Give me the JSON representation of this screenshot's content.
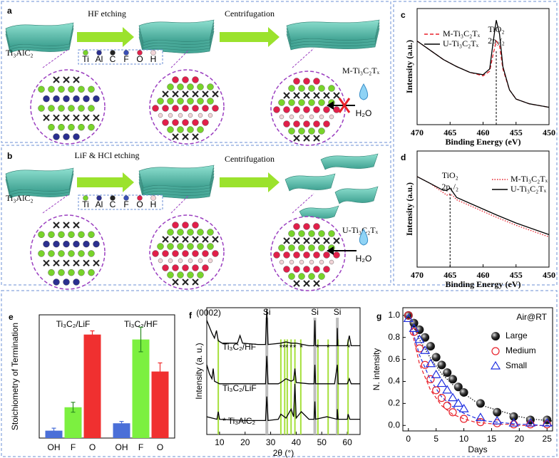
{
  "panels": {
    "a": {
      "label": "a",
      "steps": [
        "HF etching",
        "Centrifugation"
      ],
      "start": "Ti₃AlC₂",
      "product": "M-Ti₃C₂Tₓ",
      "water": "H₂O",
      "elements": [
        "Ti",
        "Al",
        "C",
        "F",
        "O",
        "H"
      ],
      "element_colors": [
        "#78d32a",
        "#2b2f8f",
        "#222222",
        "#3a4fb5",
        "#e0204a",
        "#f2d4d8"
      ]
    },
    "b": {
      "label": "b",
      "steps": [
        "LiF & HCl etching",
        "Centrifugation"
      ],
      "start": "Ti₃AlC₂",
      "product": "U-Ti₃C₂Tₓ",
      "water": "H₂O",
      "elements": [
        "Ti",
        "Al",
        "C",
        "F",
        "O",
        "H"
      ],
      "element_colors": [
        "#78d32a",
        "#2b2f8f",
        "#222222",
        "#3a4fb5",
        "#e0204a",
        "#f2d4d8"
      ]
    }
  },
  "chart_data": [
    {
      "type": "line",
      "label": "c",
      "xlabel": "Binding Energy (eV)",
      "ylabel": "Intensity (a.u.)",
      "xlim": [
        470,
        450
      ],
      "xticks": [
        470,
        465,
        460,
        455,
        450
      ],
      "ylim": [
        0,
        100
      ],
      "legend": "upper left",
      "annotation": [
        "TiO₂",
        "2p₃/₂"
      ],
      "peak_x": 458,
      "x": [
        470,
        468,
        466,
        464,
        462,
        460,
        459,
        458.5,
        458,
        457.5,
        457,
        456,
        455,
        453,
        450
      ],
      "series": [
        {
          "name": "M-Ti₃C₂Tₓ",
          "color": "#e8202a",
          "dash": "dashed",
          "values": [
            72,
            64,
            56,
            50,
            45,
            42,
            46,
            60,
            72,
            68,
            48,
            30,
            22,
            18,
            15
          ]
        },
        {
          "name": "U-Ti₃C₂Tₓ",
          "color": "#000000",
          "dash": "solid",
          "values": [
            72,
            64,
            56,
            50,
            45,
            43,
            48,
            70,
            90,
            78,
            50,
            30,
            22,
            18,
            15
          ]
        }
      ]
    },
    {
      "type": "line",
      "label": "d",
      "xlabel": "Binding Energy (eV)",
      "ylabel": "Intensity (a.u.)",
      "xlim": [
        470,
        450
      ],
      "xticks": [
        470,
        465,
        460,
        455,
        450
      ],
      "ylim": [
        0,
        100
      ],
      "legend": "upper right",
      "annotation": [
        "TiO₂",
        "2p₁/₂"
      ],
      "peak_x": 465,
      "x": [
        470,
        468,
        466,
        465.5,
        465,
        464.5,
        464,
        462,
        460,
        458,
        455,
        450
      ],
      "series": [
        {
          "name": "M-Ti₃C₂Tₓ",
          "color": "#e8202a",
          "dash": "dotted",
          "values": [
            78,
            72,
            64,
            62,
            63,
            61,
            58,
            53,
            48,
            43,
            36,
            26
          ]
        },
        {
          "name": "U-Ti₃C₂Tₓ",
          "color": "#000000",
          "dash": "solid",
          "values": [
            78,
            72,
            66,
            66,
            68,
            64,
            60,
            55,
            50,
            45,
            38,
            28
          ]
        }
      ]
    },
    {
      "type": "bar",
      "label": "e",
      "ylabel": "Stoichiometry of Termination",
      "ylim": [
        0,
        1.0
      ],
      "groups": [
        "Ti₃C₂/LiF",
        "Ti₃C₂/HF"
      ],
      "series": [
        {
          "name": "OH",
          "color": "#4a6fd8",
          "values": [
            0.06,
            0.12
          ],
          "errors": [
            0.02,
            0.015
          ]
        },
        {
          "name": "F",
          "color": "#7cf040",
          "values": [
            0.25,
            0.8
          ],
          "errors": [
            0.04,
            0.1
          ]
        },
        {
          "name": "O",
          "color": "#f03030",
          "values": [
            0.84,
            0.54
          ],
          "errors": [
            0.03,
            0.07
          ]
        }
      ]
    },
    {
      "type": "line",
      "label": "f",
      "xlabel": "2θ (°)",
      "ylabel": "Intensity (a. u.)",
      "xlim": [
        5,
        65
      ],
      "xticks": [
        10,
        20,
        30,
        40,
        50,
        60
      ],
      "ylim": [
        0,
        100
      ],
      "annotation": {
        "text": "(0002)",
        "x": 8.5
      },
      "reference_lines": {
        "label": "Si",
        "color": "#bdbdbd",
        "x": [
          28.5,
          47.3,
          56.1
        ]
      },
      "phase_lines": {
        "color": "#a6e03c",
        "x": [
          9.5,
          34,
          35.5,
          36.5,
          38,
          39.5,
          41.8,
          48.5,
          52.5,
          56.4,
          60.3
        ]
      },
      "stars": {
        "label": "*",
        "x": [
          34,
          35.2,
          36.3,
          38,
          39.4,
          42,
          48.4,
          52.5,
          60.6
        ]
      },
      "series": [
        {
          "name": "Ti₃C₂/HF",
          "color": "#000000",
          "x": [
            5,
            7,
            8,
            8.8,
            9.5,
            11,
            17,
            18,
            19,
            25,
            28,
            28.5,
            29,
            34,
            36,
            38,
            40,
            45,
            47,
            47.3,
            47.6,
            52,
            56,
            56.1,
            56.3,
            60,
            60.8,
            61.5,
            65
          ],
          "values": [
            90,
            80,
            76,
            82,
            74,
            72,
            72,
            78,
            72,
            71,
            71,
            99,
            71,
            72,
            73,
            72,
            72,
            70,
            70,
            90,
            70,
            70,
            70,
            84,
            70,
            70,
            78,
            70,
            70
          ]
        },
        {
          "name": "Ti₃C₂/LiF",
          "color": "#000000",
          "x": [
            5,
            6,
            7,
            7.5,
            8,
            10,
            20,
            28,
            28.5,
            29,
            33,
            34,
            36,
            38,
            39,
            39.5,
            40,
            45,
            47,
            47.3,
            47.6,
            55,
            56.1,
            56.4,
            60,
            60.8,
            61.5,
            65
          ],
          "values": [
            55,
            48,
            44,
            52,
            42,
            40,
            40,
            40,
            62,
            40,
            40,
            41,
            44,
            42,
            43,
            52,
            41,
            40,
            40,
            55,
            40,
            40,
            55,
            40,
            40,
            44,
            40,
            40
          ]
        },
        {
          "name": "* Ti₃AlC₂",
          "color": "#000000",
          "x": [
            5,
            9,
            9.5,
            10,
            20,
            28,
            28.5,
            29,
            33,
            34,
            36,
            38,
            39,
            39.5,
            40,
            42,
            45,
            47,
            47.3,
            47.6,
            52,
            56,
            56.1,
            56.4,
            60,
            60.3,
            61,
            65
          ],
          "values": [
            14,
            12,
            18,
            12,
            11,
            11,
            30,
            11,
            12,
            16,
            13,
            20,
            14,
            40,
            13,
            18,
            12,
            12,
            26,
            12,
            14,
            12,
            20,
            12,
            12,
            16,
            12,
            12
          ]
        }
      ]
    },
    {
      "type": "scatter",
      "label": "g",
      "xlabel": "Days",
      "ylabel": "N. intensity",
      "xlim": [
        -1,
        26
      ],
      "xticks": [
        0,
        5,
        10,
        15,
        20,
        25
      ],
      "ylim": [
        -0.05,
        1.07
      ],
      "yticks": [
        {
          "value": 0,
          "label": "0.0"
        },
        {
          "value": 0.2,
          "label": "0.2"
        },
        {
          "value": 0.4,
          "label": "0.4"
        },
        {
          "value": 0.6,
          "label": "0.6"
        },
        {
          "value": 0.8,
          "label": "0.8"
        },
        {
          "value": 1,
          "label": "1.0"
        }
      ],
      "legend": "upper right",
      "legend_title": "Air@RT",
      "series": [
        {
          "name": "Large",
          "color": "#000000",
          "marker": "sphere",
          "x": [
            0,
            1,
            2,
            3,
            4,
            5,
            6,
            7,
            8,
            9,
            10,
            13,
            16,
            19,
            22,
            25
          ],
          "values": [
            1.0,
            0.93,
            0.87,
            0.8,
            0.72,
            0.62,
            0.55,
            0.48,
            0.42,
            0.35,
            0.3,
            0.2,
            0.12,
            0.08,
            0.05,
            0.05
          ]
        },
        {
          "name": "Medium",
          "color": "#e8202a",
          "marker": "circle",
          "x": [
            0,
            1,
            2,
            3,
            4,
            5,
            6,
            7,
            8,
            10,
            13,
            16,
            19,
            22,
            25
          ],
          "values": [
            1.0,
            0.85,
            0.7,
            0.55,
            0.42,
            0.32,
            0.25,
            0.18,
            0.12,
            0.06,
            0.03,
            0.02,
            0.01,
            0.01,
            0.01
          ]
        },
        {
          "name": "Small",
          "color": "#1f2fe0",
          "marker": "triangle",
          "x": [
            0,
            1,
            2,
            3,
            4,
            5,
            6,
            7,
            8,
            9,
            10,
            13,
            16,
            19,
            22,
            25
          ],
          "values": [
            0.97,
            0.88,
            0.78,
            0.68,
            0.56,
            0.46,
            0.38,
            0.32,
            0.25,
            0.2,
            0.15,
            0.07,
            0.04,
            0.02,
            0.02,
            0.02
          ]
        }
      ],
      "fits": [
        {
          "color": "#000000",
          "dash": "dotted",
          "x": [
            0,
            2,
            4,
            6,
            8,
            10,
            12,
            14,
            16,
            18,
            20,
            22,
            24,
            26
          ],
          "values": [
            1,
            0.78,
            0.61,
            0.47,
            0.37,
            0.29,
            0.22,
            0.17,
            0.14,
            0.11,
            0.08,
            0.06,
            0.05,
            0.04
          ]
        },
        {
          "color": "#e8202a",
          "dash": "dashed",
          "x": [
            0,
            2,
            4,
            6,
            8,
            10,
            12,
            14,
            16,
            18,
            20,
            22,
            24,
            26
          ],
          "values": [
            1,
            0.56,
            0.32,
            0.18,
            0.1,
            0.06,
            0.03,
            0.02,
            0.01,
            0.01,
            0,
            0,
            0,
            0
          ]
        },
        {
          "color": "#1f2fe0",
          "dash": "dashed",
          "x": [
            0,
            2,
            4,
            6,
            8,
            10,
            12,
            14,
            16,
            18,
            20,
            22,
            24,
            26
          ],
          "values": [
            1,
            0.64,
            0.41,
            0.26,
            0.17,
            0.11,
            0.07,
            0.04,
            0.03,
            0.02,
            0.01,
            0.01,
            0,
            0
          ]
        }
      ]
    }
  ]
}
